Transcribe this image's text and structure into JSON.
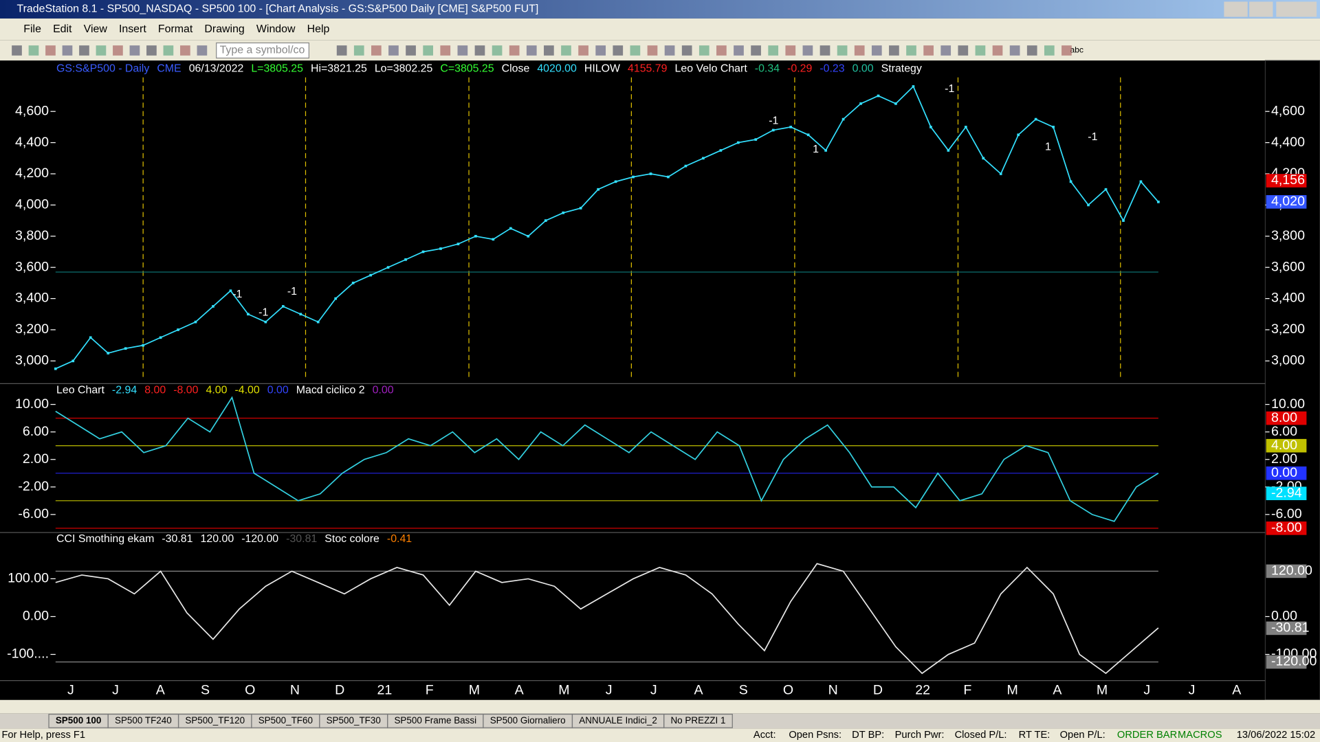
{
  "window": {
    "title": "TradeStation 8.1 - SP500_NASDAQ - SP500 100 - [Chart Analysis - GS:S&P500  Daily  [CME] S&P500 FUT]"
  },
  "menu": [
    "File",
    "Edit",
    "View",
    "Insert",
    "Format",
    "Drawing",
    "Window",
    "Help"
  ],
  "toolbar": {
    "symbol_box": "Type a symbol/co",
    "text_tool": "abc"
  },
  "panels": [
    {
      "header": [
        {
          "text": "GS:S&P500 - Daily",
          "color": "#3a5cff"
        },
        {
          "text": "CME",
          "color": "#3a5cff"
        },
        {
          "text": "06/13/2022",
          "color": "#ffffff"
        },
        {
          "text": "L=3805.25",
          "color": "#33ff33"
        },
        {
          "text": "Hi=3821.25",
          "color": "#ffffff"
        },
        {
          "text": "Lo=3802.25",
          "color": "#ffffff"
        },
        {
          "text": "C=3805.25",
          "color": "#33ff33"
        },
        {
          "text": "Close",
          "color": "#ffffff"
        },
        {
          "text": "4020.00",
          "color": "#33e0ff"
        },
        {
          "text": "HILOW",
          "color": "#ffffff"
        },
        {
          "text": "4155.79",
          "color": "#ff2020"
        },
        {
          "text": "Leo Velo Chart",
          "color": "#ffffff"
        },
        {
          "text": "-0.34",
          "color": "#20c080"
        },
        {
          "text": "-0.29",
          "color": "#ff2020"
        },
        {
          "text": "-0.23",
          "color": "#3344ff"
        },
        {
          "text": "0.00",
          "color": "#20c0a0"
        },
        {
          "text": "Strategy",
          "color": "#ffffff"
        }
      ],
      "ylim": [
        2860,
        4910
      ],
      "yticks": [
        {
          "value": 3000,
          "label": "3,000"
        },
        {
          "value": 3200,
          "label": "3,200"
        },
        {
          "value": 3400,
          "label": "3,400"
        },
        {
          "value": 3600,
          "label": "3,600"
        },
        {
          "value": 3800,
          "label": "3,800"
        },
        {
          "value": 4000,
          "label": "4,000"
        },
        {
          "value": 4200,
          "label": "4,200"
        },
        {
          "value": 4400,
          "label": "4,400"
        },
        {
          "value": 4600,
          "label": "4,600"
        }
      ],
      "levels": [
        {
          "value": 3570,
          "color": "#0e7070"
        }
      ],
      "series": [
        {
          "color": "#33e0ff",
          "values": [
            2950,
            3000,
            3150,
            3050,
            3080,
            3100,
            3150,
            3200,
            3250,
            3350,
            3450,
            3300,
            3250,
            3350,
            3300,
            3250,
            3400,
            3500,
            3550,
            3600,
            3650,
            3700,
            3720,
            3750,
            3800,
            3780,
            3850,
            3800,
            3900,
            3950,
            3980,
            4100,
            4150,
            4180,
            4200,
            4180,
            4250,
            4300,
            4350,
            4400,
            4420,
            4480,
            4500,
            4450,
            4350,
            4550,
            4650,
            4700,
            4650,
            4760,
            4500,
            4350,
            4500,
            4300,
            4200,
            4450,
            4550,
            4500,
            4150,
            4000,
            4100,
            3900,
            4150,
            4020
          ]
        }
      ],
      "badges": [
        {
          "value": 4156,
          "label": "4,156",
          "color": "#e00000"
        },
        {
          "value": 4020,
          "label": "4,020",
          "color": "#3355ff"
        }
      ],
      "signals": [
        "-1",
        "-1",
        "-1",
        "-1",
        "1",
        "-1",
        "1",
        "-1"
      ]
    },
    {
      "header": [
        {
          "text": "Leo Chart",
          "color": "#ffffff"
        },
        {
          "text": "-2.94",
          "color": "#33e0ff"
        },
        {
          "text": "8.00",
          "color": "#ff2020"
        },
        {
          "text": "-8.00",
          "color": "#ff2020"
        },
        {
          "text": "4.00",
          "color": "#e0e000"
        },
        {
          "text": "-4.00",
          "color": "#e0e000"
        },
        {
          "text": "0.00",
          "color": "#3344ff"
        },
        {
          "text": "Macd ciclico 2",
          "color": "#ffffff"
        },
        {
          "text": "0.00",
          "color": "#a020c0"
        }
      ],
      "ylim": [
        -8.5,
        12.9
      ],
      "yticks": [
        {
          "value": 10,
          "label": "10.00"
        },
        {
          "value": 6,
          "label": "6.00"
        },
        {
          "value": 2,
          "label": "2.00"
        },
        {
          "value": -2,
          "label": "-2.00"
        },
        {
          "value": -6,
          "label": "-6.00"
        }
      ],
      "levels": [
        {
          "value": 8,
          "color": "#d00000"
        },
        {
          "value": 4,
          "color": "#c0c000"
        },
        {
          "value": 0,
          "color": "#2020d0"
        },
        {
          "value": -4,
          "color": "#c0c000"
        },
        {
          "value": -8,
          "color": "#d00000"
        }
      ],
      "series": [
        {
          "color": "#33d0e0",
          "values": [
            9,
            7,
            5,
            6,
            3,
            4,
            8,
            6,
            11,
            0,
            -2,
            -4,
            -3,
            0,
            2,
            3,
            5,
            4,
            6,
            3,
            5,
            2,
            6,
            4,
            7,
            5,
            3,
            6,
            4,
            2,
            6,
            4,
            -4,
            2,
            5,
            7,
            3,
            -2,
            -2,
            -5,
            0,
            -4,
            -3,
            2,
            4,
            3,
            -4,
            -6,
            -7,
            -2,
            0
          ]
        }
      ],
      "badges": [
        {
          "value": 8,
          "label": "8.00",
          "color": "#e00000"
        },
        {
          "value": 4,
          "label": "4.00",
          "color": "#c0c000"
        },
        {
          "value": 0,
          "label": "0.00",
          "color": "#2233ff"
        },
        {
          "value": -2.94,
          "label": "-2.94",
          "color": "#00e0ff"
        },
        {
          "value": -8,
          "label": "-8.00",
          "color": "#e00000"
        }
      ]
    },
    {
      "header": [
        {
          "text": "CCI Smothing ekam",
          "color": "#ffffff"
        },
        {
          "text": "-30.81",
          "color": "#ffffff"
        },
        {
          "text": "120.00",
          "color": "#ffffff"
        },
        {
          "text": "-120.00",
          "color": "#ffffff"
        },
        {
          "text": "-30.81",
          "color": "#555555"
        },
        {
          "text": "Stoc colore",
          "color": "#ffffff"
        },
        {
          "text": "-0.41",
          "color": "#ff8000"
        }
      ],
      "ylim": [
        -167,
        220
      ],
      "yticks": [
        {
          "value": 100,
          "label": "100.00"
        },
        {
          "value": 0,
          "label": "0.00"
        },
        {
          "value": -100,
          "label": "-100...."
        }
      ],
      "right_ticks": [
        {
          "value": 0,
          "label": "0.00"
        },
        {
          "value": -100,
          "label": "-100.00"
        }
      ],
      "levels": [
        {
          "value": 120,
          "color": "#888888"
        },
        {
          "value": -120,
          "color": "#888888"
        }
      ],
      "series": [
        {
          "color": "#e8e8e8",
          "values": [
            90,
            110,
            100,
            60,
            120,
            10,
            -60,
            20,
            80,
            120,
            90,
            60,
            100,
            130,
            110,
            30,
            120,
            90,
            100,
            80,
            20,
            60,
            100,
            130,
            110,
            60,
            -20,
            -90,
            40,
            140,
            120,
            20,
            -80,
            -150,
            -100,
            -70,
            60,
            130,
            60,
            -100,
            -150,
            -90,
            -30
          ]
        }
      ],
      "badges": [
        {
          "value": 120,
          "label": "120.00",
          "color": "#808080"
        },
        {
          "value": -30.81,
          "label": "-30.81",
          "color": "#808080"
        },
        {
          "value": -120,
          "label": "-120.00",
          "color": "#808080"
        }
      ]
    }
  ],
  "x_labels": [
    "J",
    "J",
    "A",
    "S",
    "O",
    "N",
    "D",
    "21",
    "F",
    "M",
    "A",
    "M",
    "J",
    "J",
    "A",
    "S",
    "O",
    "N",
    "D",
    "22",
    "F",
    "M",
    "A",
    "M",
    "J",
    "J",
    "A"
  ],
  "tabs": [
    "SP500 100",
    "SP500 TF240",
    "SP500_TF120",
    "SP500_TF60",
    "SP500_TF30",
    "SP500 Frame Bassi",
    "SP500 Giornaliero",
    "ANNUALE Indici_2",
    "No PREZZI 1"
  ],
  "status": [
    "For Help, press F1",
    "Acct:",
    "Open Psns:",
    "DT BP:",
    "Purch Pwr:",
    "Closed P/L:",
    "RT TE:",
    "Open P/L:",
    "ORDER BAR",
    "MACROS",
    "13/06/2022 15:02"
  ]
}
